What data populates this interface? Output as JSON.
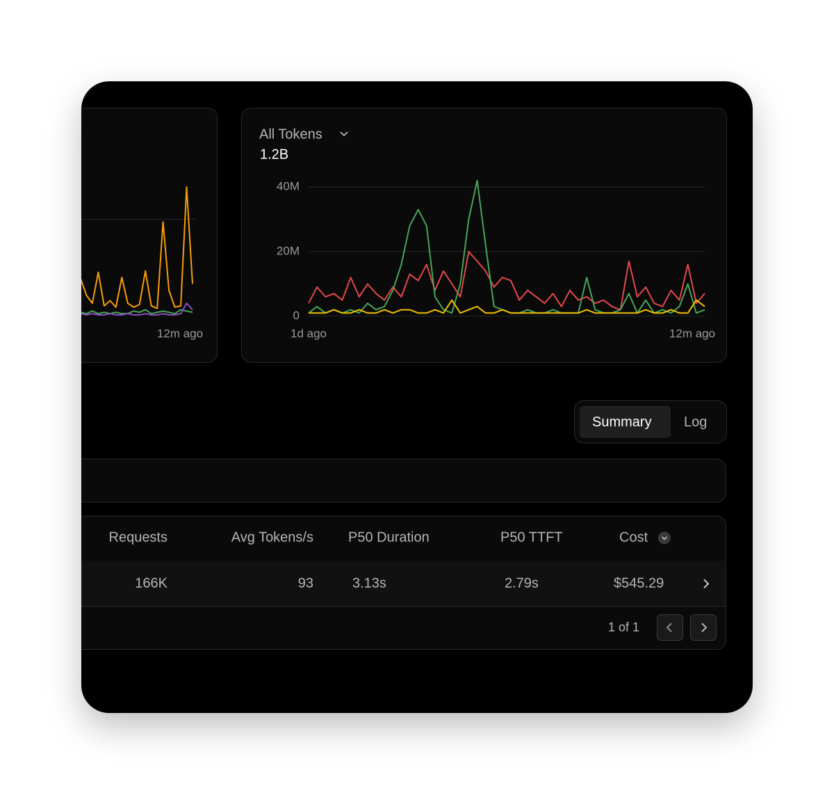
{
  "chart_data": [
    {
      "type": "line",
      "categories": [
        null,
        null,
        null,
        null,
        null,
        null,
        null,
        null,
        null,
        null,
        null,
        null,
        null,
        null,
        null,
        null,
        null,
        null,
        null,
        "12m ago"
      ],
      "ylim": [
        0,
        100
      ],
      "grid": true,
      "series": [
        {
          "color": "#f59e0b",
          "values": [
            29,
            16,
            10,
            34,
            8,
            12,
            7,
            30,
            10,
            7,
            9,
            35,
            8,
            6,
            73,
            20,
            7,
            8,
            100,
            25
          ]
        },
        {
          "color": "#46a758",
          "values": [
            3,
            2,
            4,
            2,
            3,
            2,
            3,
            2,
            2,
            4,
            3,
            5,
            2,
            3,
            4,
            3,
            2,
            5,
            4,
            3
          ]
        },
        {
          "color": "#8e4ec6",
          "values": [
            2,
            1,
            2,
            1,
            1,
            2,
            1,
            1,
            2,
            1,
            1,
            2,
            1,
            1,
            2,
            1,
            1,
            2,
            10,
            5
          ]
        }
      ]
    },
    {
      "type": "line",
      "title": "All Tokens",
      "subtitle": "1.2B",
      "categories": [
        "1d ago",
        null,
        null,
        null,
        null,
        null,
        null,
        null,
        null,
        null,
        null,
        null,
        null,
        null,
        null,
        null,
        null,
        null,
        null,
        null,
        null,
        null,
        null,
        null,
        null,
        null,
        null,
        null,
        null,
        null,
        null,
        null,
        null,
        null,
        null,
        null,
        null,
        null,
        null,
        null,
        null,
        null,
        null,
        null,
        null,
        null,
        null,
        "12m ago"
      ],
      "ylim": [
        0,
        40
      ],
      "yticks": [
        0,
        {
          "value": 20,
          "label": "20M"
        },
        {
          "value": 40,
          "label": "40M"
        }
      ],
      "grid": true,
      "series": [
        {
          "color": "#e5484d",
          "values": [
            4,
            9,
            6,
            7,
            5,
            12,
            6,
            10,
            7,
            5,
            9,
            6,
            13,
            11,
            16,
            8,
            14,
            10,
            6,
            20,
            17,
            14,
            9,
            12,
            11,
            5,
            8,
            6,
            4,
            7,
            3,
            8,
            5,
            6,
            4,
            5,
            3,
            2,
            17,
            6,
            9,
            4,
            3,
            8,
            5,
            16,
            4,
            7
          ]
        },
        {
          "color": "#46a758",
          "values": [
            1,
            3,
            1,
            2,
            1,
            2,
            1,
            4,
            2,
            3,
            8,
            16,
            28,
            33,
            28,
            6,
            2,
            1,
            10,
            30,
            42,
            22,
            3,
            2,
            1,
            1,
            2,
            1,
            1,
            2,
            1,
            1,
            1,
            12,
            2,
            1,
            1,
            2,
            7,
            1,
            5,
            1,
            2,
            1,
            3,
            10,
            1,
            2
          ]
        },
        {
          "color": "#f0c000",
          "values": [
            1,
            1,
            1,
            2,
            1,
            1,
            2,
            1,
            1,
            2,
            1,
            2,
            2,
            1,
            1,
            2,
            1,
            5,
            1,
            2,
            3,
            1,
            1,
            2,
            1,
            1,
            1,
            1,
            1,
            1,
            1,
            1,
            1,
            2,
            1,
            1,
            1,
            1,
            1,
            1,
            2,
            1,
            1,
            2,
            1,
            1,
            5,
            3
          ]
        }
      ]
    }
  ],
  "tabs": [
    "Summary",
    "Log"
  ],
  "table": {
    "headers": [
      "Requests",
      "Avg Tokens/s",
      "P50 Duration",
      "P50 TTFT",
      "Cost"
    ],
    "rows": [
      [
        "166K",
        "93",
        "3.13s",
        "2.79s",
        "$545.29"
      ]
    ]
  },
  "pagination": "1 of 1"
}
